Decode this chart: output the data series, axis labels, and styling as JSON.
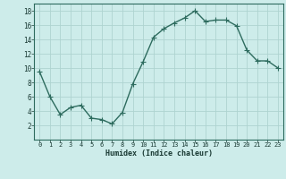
{
  "x": [
    0,
    1,
    2,
    3,
    4,
    5,
    6,
    7,
    8,
    9,
    10,
    11,
    12,
    13,
    14,
    15,
    16,
    17,
    18,
    19,
    20,
    21,
    22,
    23
  ],
  "y": [
    9.5,
    6.0,
    3.5,
    4.5,
    4.8,
    3.0,
    2.8,
    2.2,
    3.8,
    7.8,
    10.9,
    14.3,
    15.5,
    16.3,
    17.0,
    18.0,
    16.5,
    16.7,
    16.7,
    15.9,
    12.5,
    11.0,
    11.0,
    10.0
  ],
  "line_color": "#2d6b5e",
  "marker": "+",
  "marker_size": 4,
  "bg_color": "#cdecea",
  "grid_color": "#aed4d0",
  "xlabel": "Humidex (Indice chaleur)",
  "xlabel_color": "#1a3a34",
  "tick_color": "#1a3a34",
  "xlim": [
    -0.5,
    23.5
  ],
  "ylim": [
    0,
    19
  ],
  "yticks": [
    2,
    4,
    6,
    8,
    10,
    12,
    14,
    16,
    18
  ],
  "xticks": [
    0,
    1,
    2,
    3,
    4,
    5,
    6,
    7,
    8,
    9,
    10,
    11,
    12,
    13,
    14,
    15,
    16,
    17,
    18,
    19,
    20,
    21,
    22,
    23
  ],
  "linewidth": 1.0,
  "marker_linewidth": 0.8
}
